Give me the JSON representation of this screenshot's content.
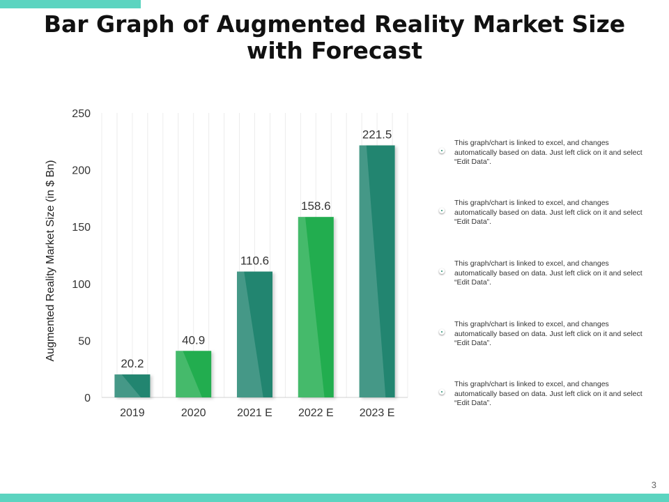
{
  "title": "Bar Graph of Augmented Reality Market Size with Forecast",
  "notes": [
    "This graph/chart is linked to excel, and changes automatically based on data. Just left click on it and select “Edit Data”.",
    "This graph/chart is linked to excel, and changes automatically based on data. Just left click on it and select “Edit Data”.",
    "This graph/chart is linked to excel, and changes automatically based on data. Just left click on it and select “Edit Data”.",
    "This graph/chart is linked to excel, and changes automatically based on data. Just left click on it and select “Edit Data”.",
    "This graph/chart is linked to excel, and changes automatically based on data. Just left click on it and select “Edit Data”."
  ],
  "page_number": "3",
  "colors": {
    "accent_band": "#5cd4c0",
    "bar_dark": "#23856f",
    "bar_light": "#21ad4f"
  },
  "chart_data": {
    "type": "bar",
    "categories": [
      "2019",
      "2020",
      "2021 E",
      "2022 E",
      "2023 E"
    ],
    "values": [
      20.2,
      40.9,
      110.6,
      158.6,
      221.5
    ],
    "data_labels": [
      "20.2",
      "40.9",
      "110.6",
      "158.6",
      "221.5"
    ],
    "bar_colors": [
      "#23856f",
      "#21ad4f",
      "#23856f",
      "#21ad4f",
      "#23856f"
    ],
    "ylabel": "Augmented Reality Market Size (in $ Bn)",
    "ylim": [
      0,
      250
    ],
    "yticks": [
      0,
      50,
      100,
      150,
      200,
      250
    ],
    "grid": "vertical",
    "legend": "none"
  }
}
